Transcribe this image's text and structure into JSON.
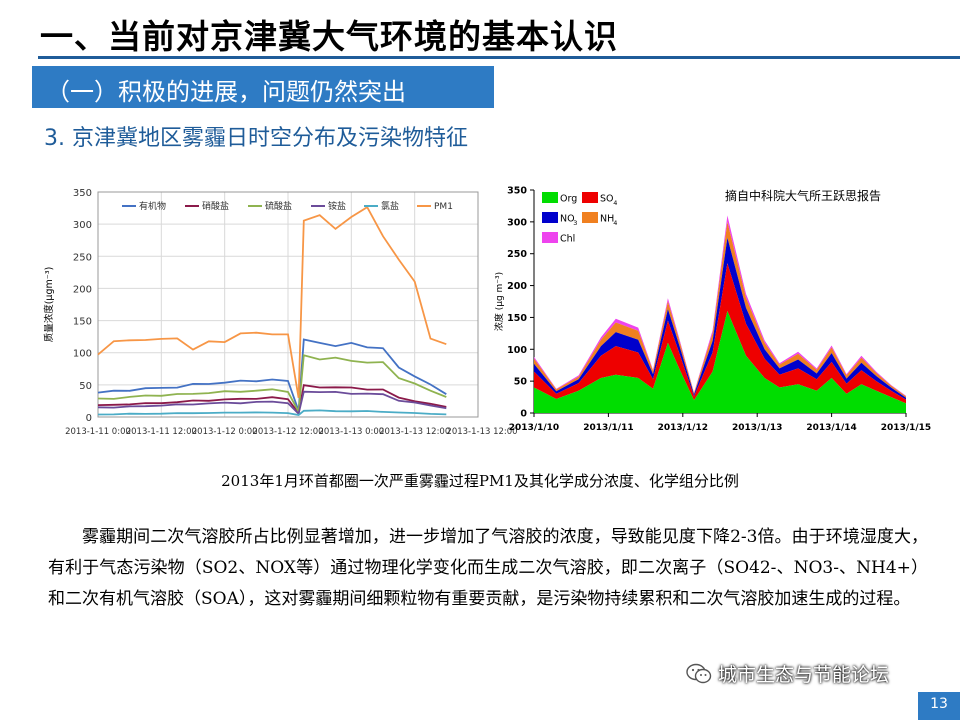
{
  "slide": {
    "title": "一、当前对京津冀大气环境的基本认识",
    "section": "（一）积极的进展，问题仍然突出",
    "subtitle": "3. 京津冀地区雾霾日时空分布及污染物特征",
    "caption": "2013年1月环首都圈一次严重雾霾过程PM1及其化学成分浓度、化学组分比例",
    "paragraph": "雾霾期间二次气溶胶所占比例显著增加，进一步增加了气溶胶的浓度，导致能见度下降2-3倍。由于环境湿度大，有利于气态污染物（SO2、NOX等）通过物理化学变化而生成二次气溶胶，即二次离子（SO42-、NO3-、NH4+）和二次有机气溶胶（SOA），这对雾霾期间细颗粒物有重要贡献，是污染物持续累积和二次气溶胶加速生成的过程。",
    "watermark": "城市生态与节能论坛",
    "page_number": "13"
  },
  "chart_data": [
    {
      "type": "line",
      "ylabel": "质量浓度(μgm⁻³)",
      "ylim": [
        0,
        350
      ],
      "yticks": [
        0,
        50,
        100,
        150,
        200,
        250,
        300,
        350
      ],
      "xticks": [
        "2013-1-11 0:00",
        "2013-1-11 12:00",
        "2013-1-12 0:00",
        "2013-1-12 12:00",
        "2013-1-13 0:00",
        "2013-1-13 12:00"
      ],
      "xticks_extra": "2013-1-13 12:00",
      "grid": true,
      "legend": "top",
      "x_hours": [
        0,
        3,
        6,
        9,
        12,
        15,
        18,
        21,
        24,
        27,
        30,
        33,
        36,
        38,
        39,
        42,
        45,
        48,
        51,
        54,
        57,
        60,
        63,
        66
      ],
      "series": [
        {
          "name": "有机物",
          "color": "#4472c4",
          "values": [
            38,
            40,
            42,
            44,
            45,
            47,
            50,
            52,
            54,
            55,
            57,
            58,
            55,
            10,
            118,
            115,
            113,
            112,
            110,
            108,
            75,
            65,
            50,
            35
          ]
        },
        {
          "name": "硝酸盐",
          "color": "#8b1a4a",
          "values": [
            18,
            19,
            20,
            21,
            22,
            23,
            25,
            26,
            27,
            28,
            29,
            30,
            28,
            6,
            48,
            47,
            46,
            45,
            44,
            42,
            30,
            25,
            20,
            16
          ]
        },
        {
          "name": "硫酸盐",
          "color": "#8fb350",
          "values": [
            28,
            29,
            31,
            33,
            34,
            35,
            36,
            38,
            39,
            40,
            41,
            42,
            40,
            8,
            95,
            92,
            90,
            88,
            86,
            83,
            62,
            52,
            40,
            32
          ]
        },
        {
          "name": "铵盐",
          "color": "#6b4c9a",
          "values": [
            15,
            15,
            16,
            17,
            18,
            19,
            20,
            21,
            22,
            22,
            23,
            24,
            22,
            5,
            40,
            39,
            38,
            37,
            36,
            35,
            26,
            22,
            18,
            14
          ]
        },
        {
          "name": "氯盐",
          "color": "#4bacc6",
          "values": [
            4,
            4,
            5,
            5,
            5,
            6,
            6,
            6,
            7,
            7,
            7,
            7,
            6,
            3,
            10,
            10,
            9,
            9,
            9,
            8,
            7,
            6,
            5,
            4
          ]
        },
        {
          "name": "PM1",
          "color": "#f79646",
          "values": [
            100,
            115,
            120,
            122,
            118,
            125,
            105,
            115,
            120,
            128,
            130,
            132,
            125,
            30,
            310,
            305,
            300,
            310,
            320,
            290,
            240,
            210,
            125,
            110
          ]
        }
      ]
    },
    {
      "type": "area",
      "ylabel": "浓度 (μg m⁻³)",
      "ylim": [
        0,
        350
      ],
      "yticks": [
        0,
        50,
        100,
        150,
        200,
        250,
        300,
        350
      ],
      "xticks": [
        "2013/1/10",
        "2013/1/11",
        "2013/1/12",
        "2013/1/13",
        "2013/1/14",
        "2013/1/15"
      ],
      "annotation": "摘自中科院大气所王跃思报告",
      "legend": "top-left",
      "x_days": [
        0.0,
        0.3,
        0.6,
        0.9,
        1.1,
        1.4,
        1.6,
        1.8,
        1.95,
        2.15,
        2.4,
        2.6,
        2.85,
        3.1,
        3.3,
        3.55,
        3.8,
        4.0,
        4.2,
        4.4,
        4.6,
        4.8,
        5.0
      ],
      "series": [
        {
          "name": "Org",
          "color": "#00dd00",
          "values": [
            40,
            22,
            35,
            55,
            60,
            55,
            38,
            110,
            70,
            20,
            65,
            160,
            90,
            55,
            40,
            45,
            35,
            55,
            30,
            45,
            35,
            25,
            15
          ]
        },
        {
          "name": "SO4",
          "subscript": "4",
          "color": "#ee0000",
          "values": [
            25,
            8,
            12,
            35,
            45,
            40,
            15,
            35,
            25,
            6,
            30,
            75,
            50,
            30,
            20,
            25,
            18,
            25,
            16,
            22,
            15,
            10,
            6
          ]
        },
        {
          "name": "NO3",
          "subscript": "3",
          "color": "#0000cc",
          "values": [
            12,
            4,
            6,
            15,
            22,
            20,
            8,
            18,
            12,
            3,
            18,
            40,
            25,
            15,
            10,
            14,
            9,
            14,
            8,
            12,
            8,
            5,
            3
          ]
        },
        {
          "name": "NH4",
          "subscript": "4",
          "color": "#f08020",
          "values": [
            8,
            3,
            4,
            10,
            15,
            14,
            5,
            12,
            8,
            2,
            12,
            25,
            16,
            10,
            6,
            9,
            6,
            9,
            5,
            8,
            5,
            3,
            2
          ]
        },
        {
          "name": "Chl",
          "color": "#ee44ee",
          "values": [
            3,
            1,
            2,
            4,
            6,
            5,
            2,
            5,
            3,
            1,
            5,
            10,
            6,
            4,
            2,
            3,
            2,
            3,
            2,
            3,
            2,
            1,
            1
          ]
        }
      ]
    }
  ]
}
